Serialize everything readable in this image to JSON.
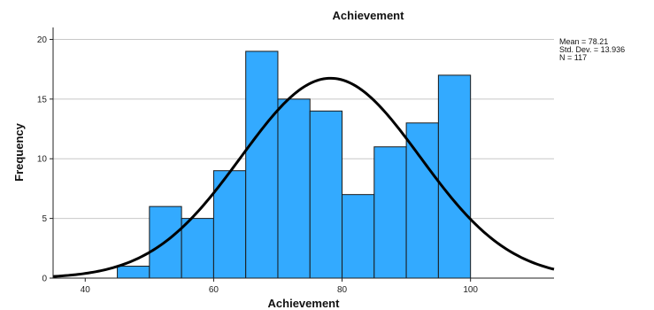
{
  "chart_data": {
    "type": "bar",
    "title": "Achievement",
    "xlabel": "Achievement",
    "ylabel": "Frequency",
    "xlim": [
      35,
      113
    ],
    "ylim": [
      0,
      21
    ],
    "x_ticks": [
      40,
      60,
      80,
      100
    ],
    "y_ticks": [
      0,
      5,
      10,
      15,
      20
    ],
    "grid": "horizontal",
    "bin_width": 5,
    "bins": [
      {
        "start": 45,
        "end": 50,
        "count": 1
      },
      {
        "start": 50,
        "end": 55,
        "count": 6
      },
      {
        "start": 55,
        "end": 60,
        "count": 5
      },
      {
        "start": 60,
        "end": 65,
        "count": 9
      },
      {
        "start": 65,
        "end": 70,
        "count": 19
      },
      {
        "start": 70,
        "end": 75,
        "count": 15
      },
      {
        "start": 75,
        "end": 80,
        "count": 14
      },
      {
        "start": 80,
        "end": 85,
        "count": 7
      },
      {
        "start": 85,
        "end": 90,
        "count": 11
      },
      {
        "start": 90,
        "end": 95,
        "count": 13
      },
      {
        "start": 95,
        "end": 100,
        "count": 17
      }
    ],
    "normal_curve": {
      "mean": 78.21,
      "sd": 13.936,
      "n": 117
    },
    "stats_lines": [
      "Mean = 78.21",
      "Std. Dev. = 13.936",
      "N = 117"
    ],
    "bar_color": "#33aaff",
    "bar_edge_color": "#1a1a1a",
    "curve_color": "#000000",
    "grid_color": "#c8c8c8"
  }
}
